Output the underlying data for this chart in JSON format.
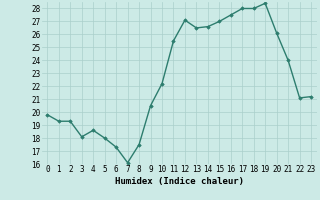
{
  "x": [
    0,
    1,
    2,
    3,
    4,
    5,
    6,
    7,
    8,
    9,
    10,
    11,
    12,
    13,
    14,
    15,
    16,
    17,
    18,
    19,
    20,
    21,
    22,
    23
  ],
  "y": [
    19.8,
    19.3,
    19.3,
    18.1,
    18.6,
    18.0,
    17.3,
    16.1,
    17.5,
    20.5,
    22.2,
    25.5,
    27.1,
    26.5,
    26.6,
    27.0,
    27.5,
    28.0,
    28.0,
    28.4,
    26.1,
    24.0,
    21.1,
    21.2
  ],
  "line_color": "#2d7d6e",
  "marker": "D",
  "marker_size": 1.8,
  "bg_color": "#cceae6",
  "grid_color": "#aacfcb",
  "xlabel": "Humidex (Indice chaleur)",
  "ylim": [
    16,
    28.5
  ],
  "xlim": [
    -0.5,
    23.5
  ],
  "yticks": [
    16,
    17,
    18,
    19,
    20,
    21,
    22,
    23,
    24,
    25,
    26,
    27,
    28
  ],
  "xticks": [
    0,
    1,
    2,
    3,
    4,
    5,
    6,
    7,
    8,
    9,
    10,
    11,
    12,
    13,
    14,
    15,
    16,
    17,
    18,
    19,
    20,
    21,
    22,
    23
  ],
  "tick_fontsize": 5.5,
  "xlabel_fontsize": 6.5,
  "linewidth": 1.0
}
